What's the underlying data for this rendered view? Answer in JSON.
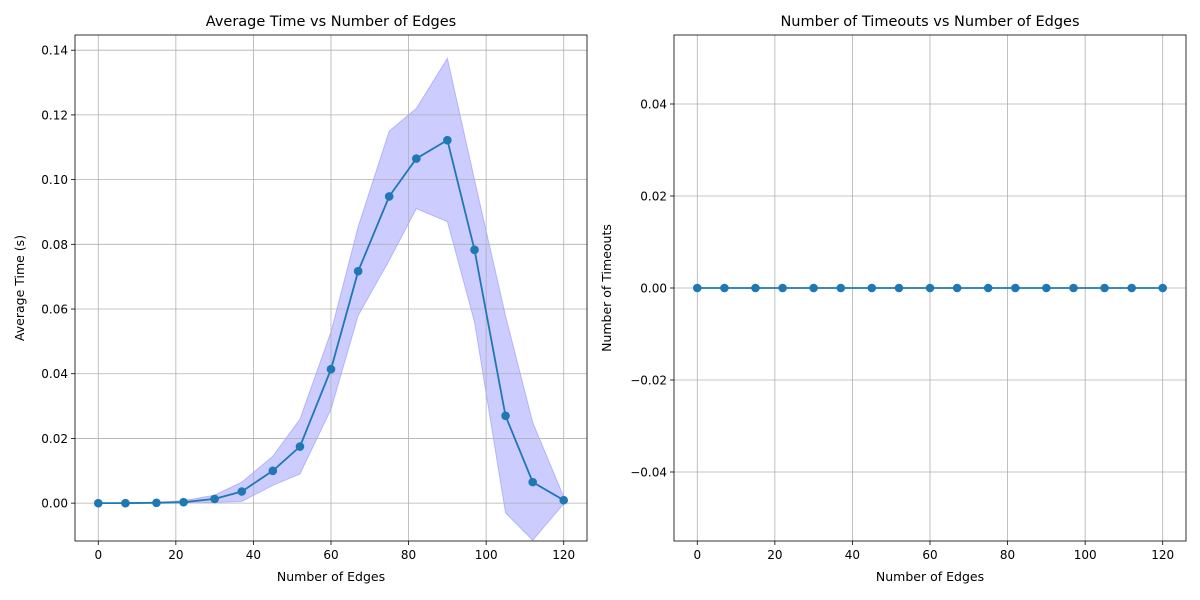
{
  "chart_data": [
    {
      "type": "line",
      "title": "Average Time vs Number of Edges",
      "xlabel": "Number of Edges",
      "ylabel": "Average Time (s)",
      "xlim": [
        -6,
        126
      ],
      "ylim": [
        -0.0117,
        0.1447
      ],
      "xticks": [
        0,
        20,
        40,
        60,
        80,
        100,
        120
      ],
      "xtick_labels": [
        "0",
        "20",
        "40",
        "60",
        "80",
        "100",
        "120"
      ],
      "yticks": [
        0.0,
        0.02,
        0.04,
        0.06,
        0.08,
        0.1,
        0.12,
        0.14
      ],
      "ytick_labels": [
        "0.00",
        "0.02",
        "0.04",
        "0.06",
        "0.08",
        "0.10",
        "0.12",
        "0.14"
      ],
      "grid": true,
      "colors": {
        "line": "#1f77b4",
        "band": "#0000ff"
      },
      "x": [
        0,
        7,
        15,
        22,
        30,
        37,
        45,
        52,
        60,
        67,
        75,
        82,
        90,
        97,
        105,
        112,
        120
      ],
      "series": [
        {
          "values": [
            0.0,
            0.0,
            0.0001,
            0.0003,
            0.0013,
            0.0036,
            0.01,
            0.0175,
            0.0414,
            0.0717,
            0.0948,
            0.1065,
            0.1122,
            0.0783,
            0.027,
            0.0065,
            0.0009
          ]
        }
      ],
      "band_lower": [
        0.0,
        0.0,
        0.0,
        0.0,
        0.0002,
        0.0005,
        0.0055,
        0.009,
        0.029,
        0.058,
        0.075,
        0.091,
        0.087,
        0.056,
        -0.003,
        -0.0115,
        -0.0002
      ],
      "band_upper": [
        0.0,
        0.0001,
        0.0003,
        0.0008,
        0.0025,
        0.0065,
        0.0145,
        0.026,
        0.053,
        0.0855,
        0.115,
        0.122,
        0.1375,
        0.1,
        0.058,
        0.025,
        0.002
      ]
    },
    {
      "type": "line",
      "title": "Number of Timeouts vs Number of Edges",
      "xlabel": "Number of Edges",
      "ylabel": "Number of Timeouts",
      "xlim": [
        -6,
        126
      ],
      "ylim": [
        -0.055,
        0.055
      ],
      "xticks": [
        0,
        20,
        40,
        60,
        80,
        100,
        120
      ],
      "xtick_labels": [
        "0",
        "20",
        "40",
        "60",
        "80",
        "100",
        "120"
      ],
      "yticks": [
        -0.04,
        -0.02,
        0.0,
        0.02,
        0.04
      ],
      "ytick_labels": [
        "−0.04",
        "−0.02",
        "0.00",
        "0.02",
        "0.04"
      ],
      "grid": true,
      "colors": {
        "line": "#1f77b4"
      },
      "x": [
        0,
        7,
        15,
        22,
        30,
        37,
        45,
        52,
        60,
        67,
        75,
        82,
        90,
        97,
        105,
        112,
        120
      ],
      "series": [
        {
          "values": [
            0,
            0,
            0,
            0,
            0,
            0,
            0,
            0,
            0,
            0,
            0,
            0,
            0,
            0,
            0,
            0,
            0
          ]
        }
      ]
    }
  ]
}
